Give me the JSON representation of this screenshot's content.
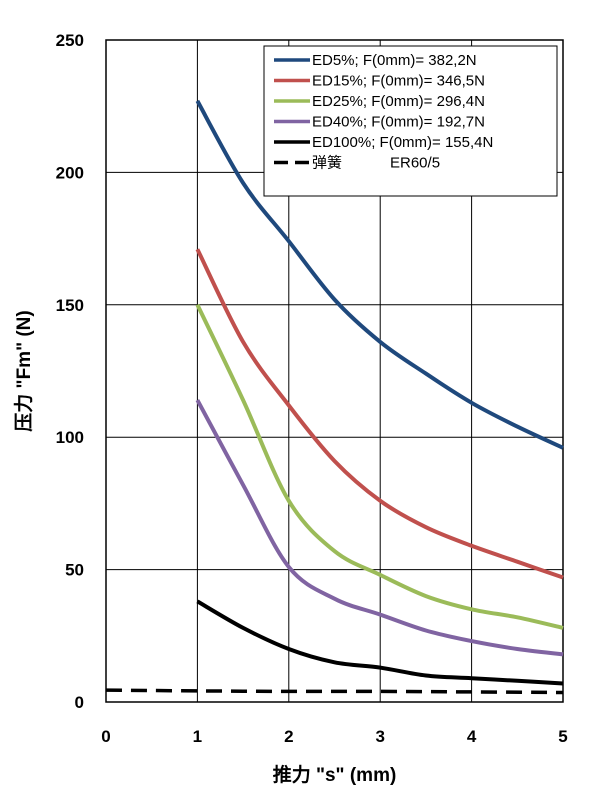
{
  "chart_data": {
    "type": "line",
    "xlabel": "推力 \"s\" (mm)",
    "ylabel": "压力 \"Fm\" (N)",
    "xlim": [
      0,
      5
    ],
    "ylim": [
      0,
      250
    ],
    "x_ticks": [
      "0",
      "1",
      "2",
      "3",
      "4",
      "5"
    ],
    "y_ticks": [
      "0",
      "50",
      "100",
      "150",
      "200",
      "250"
    ],
    "grid": true,
    "legend_position": "top-right",
    "series": [
      {
        "name": "ED5%; F(0mm)= 382,2N",
        "color": "#1f497d",
        "dash": false,
        "points": [
          [
            1,
            227
          ],
          [
            1.5,
            196
          ],
          [
            2,
            174
          ],
          [
            2.5,
            152
          ],
          [
            3,
            136
          ],
          [
            3.5,
            124
          ],
          [
            4,
            113
          ],
          [
            4.5,
            104
          ],
          [
            5,
            96
          ]
        ]
      },
      {
        "name": "ED15%; F(0mm)= 346,5N",
        "color": "#c0504d",
        "dash": false,
        "points": [
          [
            1,
            171
          ],
          [
            1.5,
            136
          ],
          [
            2,
            112
          ],
          [
            2.5,
            91
          ],
          [
            3,
            76
          ],
          [
            3.5,
            66
          ],
          [
            4,
            59
          ],
          [
            4.5,
            53
          ],
          [
            5,
            47
          ]
        ]
      },
      {
        "name": "ED25%; F(0mm)= 296,4N",
        "color": "#9bbb59",
        "dash": false,
        "points": [
          [
            1,
            150
          ],
          [
            1.5,
            114
          ],
          [
            2,
            76
          ],
          [
            2.5,
            57
          ],
          [
            3,
            48
          ],
          [
            3.5,
            40
          ],
          [
            4,
            35
          ],
          [
            4.5,
            32
          ],
          [
            5,
            28
          ]
        ]
      },
      {
        "name": "ED40%; F(0mm)= 192,7N",
        "color": "#8064a2",
        "dash": false,
        "points": [
          [
            1,
            114
          ],
          [
            1.5,
            82
          ],
          [
            2,
            51
          ],
          [
            2.5,
            39
          ],
          [
            3,
            33
          ],
          [
            3.5,
            27
          ],
          [
            4,
            23
          ],
          [
            4.5,
            20
          ],
          [
            5,
            18
          ]
        ]
      },
      {
        "name": "ED100%; F(0mm)= 155,4N",
        "color": "#000000",
        "dash": false,
        "points": [
          [
            1,
            38
          ],
          [
            1.5,
            28
          ],
          [
            2,
            20
          ],
          [
            2.5,
            15
          ],
          [
            3,
            13
          ],
          [
            3.5,
            10
          ],
          [
            4,
            9
          ],
          [
            4.5,
            8
          ],
          [
            5,
            7
          ]
        ]
      },
      {
        "name": "弹簧",
        "color": "#000000",
        "dash": true,
        "points": [
          [
            0,
            4.5
          ],
          [
            1,
            4.2
          ],
          [
            2,
            4
          ],
          [
            3,
            4
          ],
          [
            4,
            3.8
          ],
          [
            5,
            3.6
          ]
        ]
      }
    ],
    "legend_extra": "ER60/5"
  }
}
